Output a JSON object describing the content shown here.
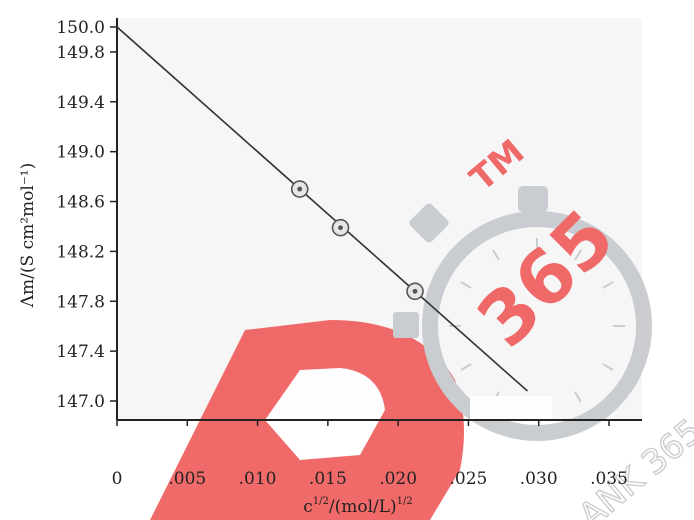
{
  "chart_data": {
    "type": "scatter",
    "x_label": "c",
    "x_label_sup": "1/2",
    "x_label_mid": "/(mol/L)",
    "x_label_sup2": "1/2",
    "y_label": "Λm/(S cm²mol⁻¹)",
    "xlim": [
      0,
      0.038
    ],
    "ylim": [
      146.6,
      150.0
    ],
    "x_ticks": [
      0,
      0.005,
      0.01,
      0.015,
      0.02,
      0.025,
      0.03,
      0.035
    ],
    "x_tick_labels": [
      "0",
      ".005",
      ".010",
      ".015",
      ".020",
      ".025",
      ".030",
      ".035"
    ],
    "y_ticks": [
      147.0,
      147.4,
      147.8,
      148.2,
      148.6,
      149.0,
      149.4,
      149.8,
      150.0
    ],
    "y_tick_labels": [
      "147.0",
      "147.4",
      "147.8",
      "148.2",
      "148.6",
      "149.0",
      "149.4",
      "149.8",
      "150.0"
    ],
    "points": [
      {
        "x": 0.013,
        "y": 148.7
      },
      {
        "x": 0.0159,
        "y": 148.39
      },
      {
        "x": 0.0212,
        "y": 147.88
      }
    ],
    "fit_line": {
      "x": [
        0,
        0.0292
      ],
      "y": [
        150.0,
        147.08
      ]
    },
    "colors": {
      "plot_bg": "#f6f6f6",
      "line": "#333333",
      "marker": "#555555"
    }
  },
  "watermark": {
    "tm_text": "TM",
    "number_text": "365",
    "side_text": "ANK 365",
    "colors": {
      "red": "#f05a5a",
      "grey": "#c5c8cc"
    }
  }
}
